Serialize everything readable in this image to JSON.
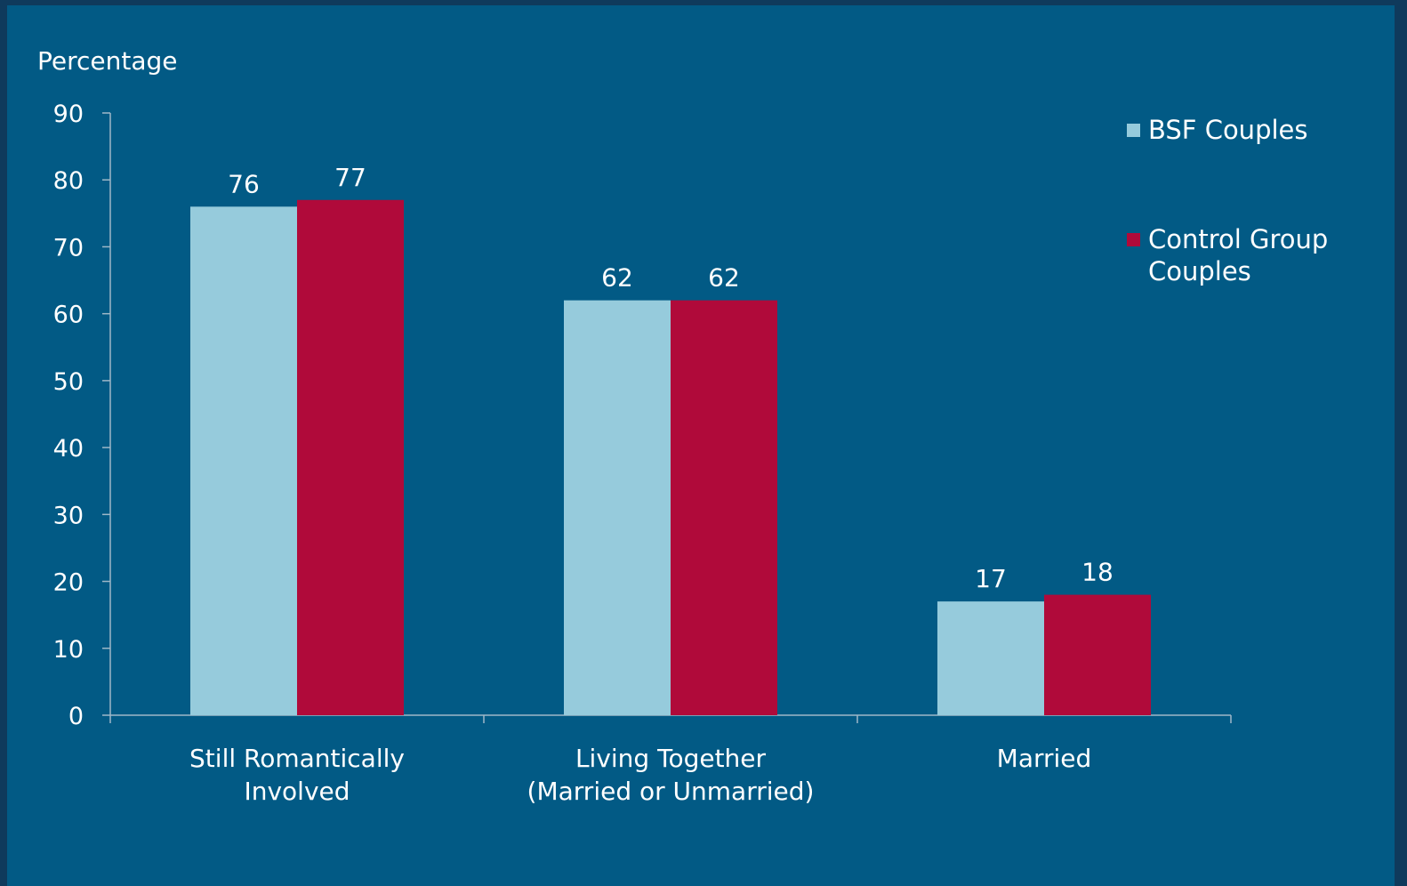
{
  "chart_data": {
    "type": "bar",
    "ylabel": "Percentage",
    "ylim": [
      0,
      90
    ],
    "yticks": [
      "0",
      "10",
      "20",
      "30",
      "40",
      "50",
      "60",
      "70",
      "80",
      "90"
    ],
    "categories": [
      [
        "Still Romantically",
        "Involved"
      ],
      [
        "Living Together",
        "(Married or Unmarried)"
      ],
      [
        "Married"
      ]
    ],
    "series": [
      {
        "name": "BSF Couples",
        "values": [
          76,
          62,
          17
        ]
      },
      {
        "name": "Control Group Couples",
        "legend_lines": [
          "Control Group",
          "Couples"
        ],
        "values": [
          77,
          62,
          18
        ]
      }
    ],
    "legend_position": "top-right",
    "grid": false
  },
  "colors": {
    "background": "#025a85",
    "bsf": "#96cbdc",
    "control": "#b00a3a",
    "axis": "#9fb8c8",
    "text": "#ffffff"
  }
}
